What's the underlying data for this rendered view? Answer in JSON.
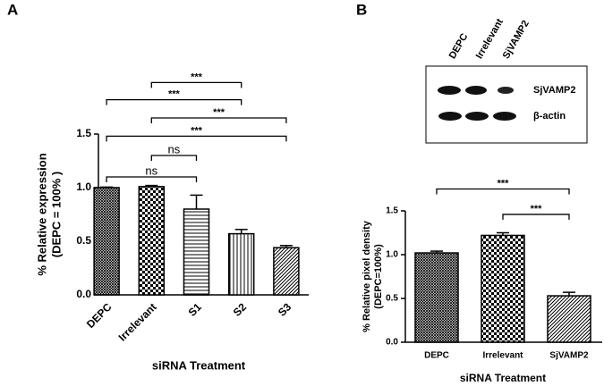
{
  "panels": [
    "A",
    "B"
  ],
  "blot": {
    "lanes": [
      "DEPC",
      "Irrelevant",
      "SjVAMP2"
    ],
    "proteins": [
      "SjVAMP2",
      "β-actin"
    ]
  },
  "chart_data": [
    {
      "type": "bar",
      "x_label": "siRNA Treatment",
      "y_label": [
        "% Relative expression",
        "(DEPC = 100% )"
      ],
      "categories": [
        "DEPC",
        "Irrelevant",
        "S1",
        "S2",
        "S3"
      ],
      "values": [
        1.0,
        1.01,
        0.8,
        0.57,
        0.44
      ],
      "errors": [
        0.005,
        0.01,
        0.13,
        0.04,
        0.02
      ],
      "patterns": [
        "crosshatch",
        "checker",
        "horizontal",
        "vertical",
        "diagonal"
      ],
      "color": "#000000",
      "ylim": [
        0,
        1.5
      ],
      "yticks": [
        {
          "value": 0,
          "label": "0.0"
        },
        {
          "value": 0.5,
          "label": "0.5"
        },
        {
          "value": 1,
          "label": "1.0"
        },
        {
          "value": 1.5,
          "label": "1.5"
        }
      ],
      "annotations": [
        {
          "text": "ns",
          "from": "DEPC",
          "to": "S1",
          "y": 1.1
        },
        {
          "text": "ns",
          "from": "Irrelevant",
          "to": "S1",
          "y": 1.3
        },
        {
          "text": "***",
          "from": "DEPC",
          "to": "S3",
          "y": 1.48
        },
        {
          "text": "***",
          "from": "Irrelevant",
          "to": "S3",
          "y": 1.65
        },
        {
          "text": "***",
          "from": "DEPC",
          "to": "S2",
          "y": 1.82
        },
        {
          "text": "***",
          "from": "Irrelevant",
          "to": "S2",
          "y": 1.98
        }
      ]
    },
    {
      "type": "bar",
      "x_label": "siRNA Treatment",
      "y_label": [
        "% Relative pixel density",
        "(DEPC=100%)"
      ],
      "categories": [
        "DEPC",
        "Irrelevant",
        "SjVAMP2"
      ],
      "values": [
        1.02,
        1.22,
        0.53
      ],
      "errors": [
        0.02,
        0.03,
        0.04
      ],
      "patterns": [
        "crosshatch",
        "checker",
        "diagonal"
      ],
      "color": "#000000",
      "ylim": [
        0,
        1.5
      ],
      "yticks": [
        {
          "value": 0,
          "label": "0.0"
        },
        {
          "value": 0.5,
          "label": "0.5"
        },
        {
          "value": 1,
          "label": "1.0"
        },
        {
          "value": 1.5,
          "label": "1.5"
        }
      ],
      "annotations": [
        {
          "text": "***",
          "from": "DEPC",
          "to": "SjVAMP2",
          "y": 1.75
        },
        {
          "text": "***",
          "from": "Irrelevant",
          "to": "SjVAMP2",
          "y": 1.46
        }
      ]
    }
  ]
}
